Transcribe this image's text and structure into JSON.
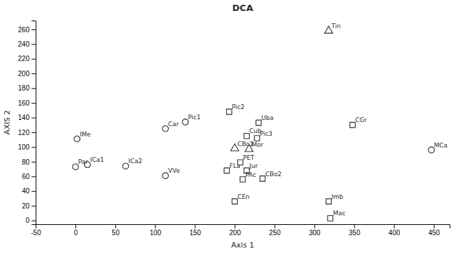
{
  "chart_data": {
    "type": "scatter",
    "title": "DCA",
    "xlabel": "Axis 1",
    "ylabel": "AXIS 2",
    "xlim": [
      -50,
      470
    ],
    "ylim": [
      -5,
      272
    ],
    "xticks": [
      -50,
      0,
      50,
      100,
      150,
      200,
      250,
      300,
      350,
      400,
      450
    ],
    "yticks": [
      0,
      20,
      40,
      60,
      80,
      100,
      120,
      140,
      160,
      180,
      200,
      220,
      240,
      260
    ],
    "color": "#2a2a2a",
    "series": [
      {
        "marker": "circle",
        "labels": [
          "Par",
          "ICa1",
          "IMe",
          "ICa2",
          "VVe",
          "Car",
          "Pic1",
          "MCa"
        ],
        "x": [
          0,
          15,
          2,
          63,
          113,
          113,
          138,
          447
        ],
        "values": [
          73,
          76,
          111,
          74,
          61,
          125,
          134,
          96
        ]
      },
      {
        "marker": "square",
        "labels": [
          "Pic2",
          "FLa",
          "PET",
          "Jur",
          "PAc",
          "CEn",
          "Cub",
          "Pic3",
          "Uba",
          "CBo2",
          "CGr",
          "Imb",
          "Mac"
        ],
        "x": [
          193,
          190,
          207,
          215,
          210,
          200,
          215,
          228,
          230,
          235,
          348,
          318,
          320
        ],
        "values": [
          148,
          68,
          79,
          68,
          56,
          26,
          115,
          112,
          133,
          57,
          130,
          26,
          3
        ]
      },
      {
        "marker": "triangle",
        "labels": [
          "Tin",
          "CBo1",
          "Mor"
        ],
        "x": [
          318,
          200,
          218
        ],
        "values": [
          258,
          98,
          97
        ]
      }
    ]
  }
}
